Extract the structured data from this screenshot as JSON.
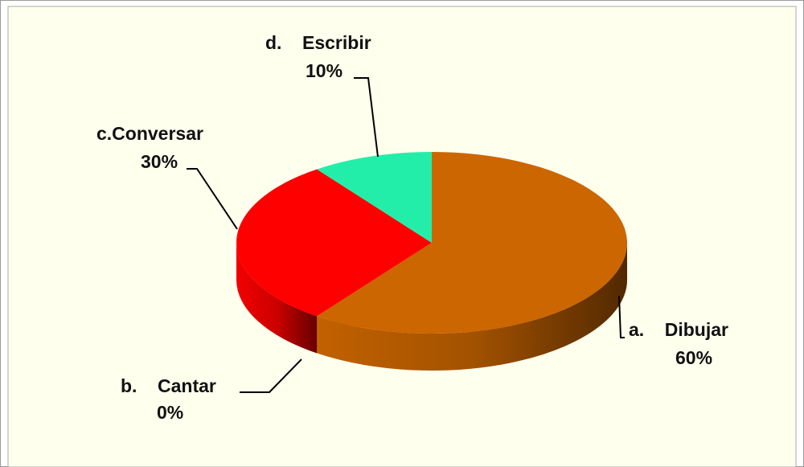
{
  "chart_data": {
    "type": "pie",
    "three_d": true,
    "categories": [
      "a.    Dibujar",
      "b.    Cantar",
      "c.Conversar",
      "d.    Escribir"
    ],
    "values": [
      60,
      0,
      30,
      10
    ],
    "value_labels": [
      "60%",
      "0%",
      "30%",
      "10%"
    ],
    "colors": [
      "#cc6600",
      "#ffcc00",
      "#ff0000",
      "#22eeaa"
    ]
  }
}
